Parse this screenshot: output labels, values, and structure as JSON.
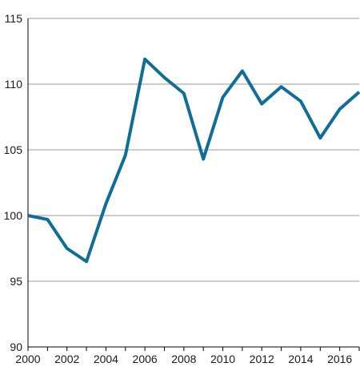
{
  "chart_data": {
    "type": "line",
    "title": "",
    "xlabel": "",
    "ylabel": "",
    "x": [
      2000,
      2001,
      2002,
      2003,
      2004,
      2005,
      2006,
      2007,
      2008,
      2009,
      2010,
      2011,
      2012,
      2013,
      2014,
      2015,
      2016,
      2017
    ],
    "series": [
      {
        "values": [
          100.0,
          99.7,
          97.5,
          96.5,
          100.9,
          104.6,
          111.9,
          110.5,
          109.3,
          104.3,
          109.0,
          111.0,
          108.5,
          109.8,
          108.7,
          105.9,
          108.1,
          109.4
        ],
        "color": "#0f6e95"
      }
    ],
    "xlim": [
      2000,
      2017
    ],
    "ylim": [
      90,
      115
    ],
    "x_ticks": [
      "2000",
      "2002",
      "2004",
      "2006",
      "2008",
      "2010",
      "2012",
      "2014",
      "2016"
    ],
    "y_ticks": [
      "90",
      "95",
      "100",
      "105",
      "110",
      "115"
    ],
    "grid": "horizontal",
    "legend": "none"
  },
  "colors": {
    "line": "#0f6e95",
    "grid": "#9a9a9a",
    "axis": "#000000"
  }
}
